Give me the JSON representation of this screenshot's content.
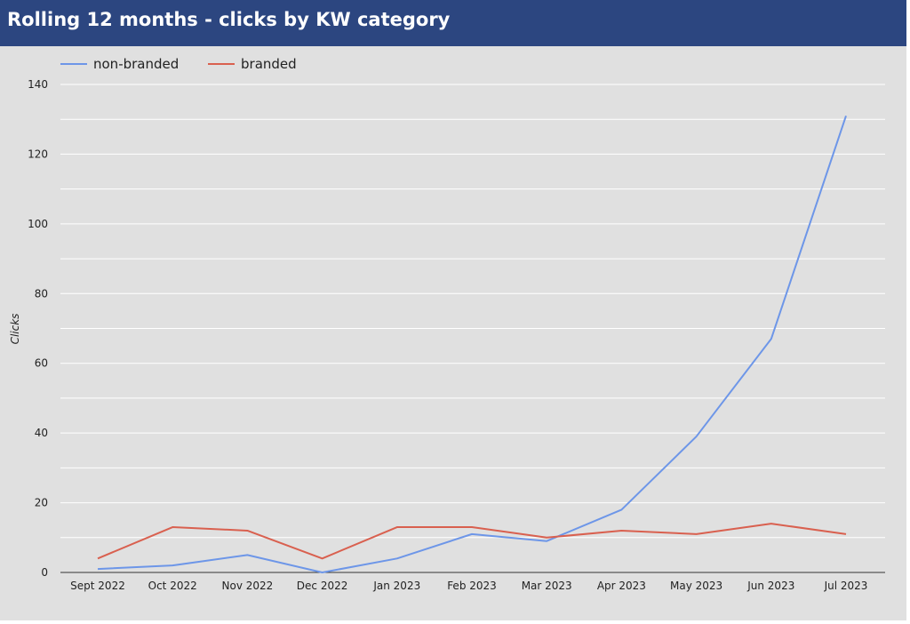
{
  "header": {
    "title": "Rolling 12 months - clicks by KW category"
  },
  "chart_data": {
    "type": "line",
    "title": "Rolling 12 months - clicks by KW category",
    "xlabel": "",
    "ylabel": "Clicks",
    "ylim": [
      0,
      140
    ],
    "yticks": [
      0,
      20,
      40,
      60,
      80,
      100,
      120,
      140
    ],
    "grid": true,
    "legend_position": "top-left",
    "categories": [
      "Sept 2022",
      "Oct 2022",
      "Nov 2022",
      "Dec 2022",
      "Jan 2023",
      "Feb 2023",
      "Mar 2023",
      "Apr 2023",
      "May 2023",
      "Jun 2023",
      "Jul 2023"
    ],
    "series": [
      {
        "name": "non-branded",
        "color": "#6d96e8",
        "values": [
          1,
          2,
          5,
          0,
          4,
          11,
          9,
          18,
          39,
          67,
          131
        ]
      },
      {
        "name": "branded",
        "color": "#d9604f",
        "values": [
          4,
          13,
          12,
          4,
          13,
          13,
          10,
          12,
          11,
          14,
          11
        ]
      }
    ]
  }
}
